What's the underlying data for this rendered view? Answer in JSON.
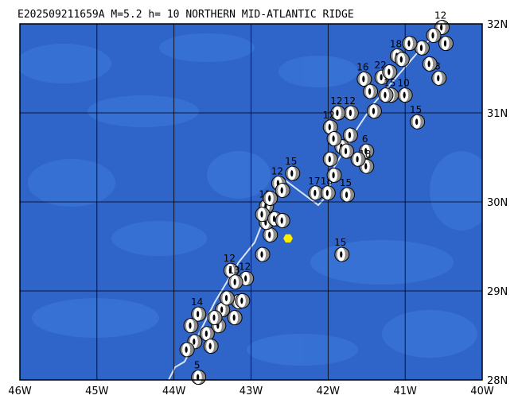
{
  "map": {
    "title": "E202509211659A M=5.2 h= 10 NORTHERN MID-ATLANTIC RIDGE",
    "xlim": [
      -46,
      -40
    ],
    "ylim": [
      28,
      32
    ],
    "xticks": [
      {
        "value": -46,
        "label": "46W"
      },
      {
        "value": -45,
        "label": "45W"
      },
      {
        "value": -44,
        "label": "44W"
      },
      {
        "value": -43,
        "label": "43W"
      },
      {
        "value": -42,
        "label": "42W"
      },
      {
        "value": -41,
        "label": "41W"
      },
      {
        "value": -40,
        "label": "40W"
      }
    ],
    "yticks": [
      {
        "value": 28,
        "label": "28N"
      },
      {
        "value": 29,
        "label": "29N"
      },
      {
        "value": 30,
        "label": "30N"
      },
      {
        "value": 31,
        "label": "31N"
      },
      {
        "value": 32,
        "label": "32N"
      }
    ],
    "epicenter": {
      "lon": -42.52,
      "lat": 29.59,
      "color": "#ffee00"
    },
    "events": [
      {
        "lon": -43.68,
        "lat": 28.03,
        "label": "5"
      },
      {
        "lon": -41.82,
        "lat": 29.41,
        "label": "15"
      },
      {
        "lon": -40.84,
        "lat": 30.9,
        "label": "15"
      },
      {
        "lon": -41.75,
        "lat": 30.08,
        "label": "15"
      },
      {
        "lon": -42.16,
        "lat": 30.1,
        "label": "17"
      },
      {
        "lon": -42.0,
        "lat": 30.1,
        "label": "18"
      },
      {
        "lon": -42.46,
        "lat": 30.32,
        "label": "15"
      },
      {
        "lon": -42.64,
        "lat": 30.21,
        "label": "12"
      },
      {
        "lon": -42.8,
        "lat": 29.95,
        "label": "13"
      },
      {
        "lon": -43.26,
        "lat": 29.23,
        "label": "12"
      },
      {
        "lon": -43.06,
        "lat": 29.14,
        "label": "12"
      },
      {
        "lon": -43.2,
        "lat": 29.1,
        "label": "13"
      },
      {
        "lon": -43.68,
        "lat": 28.74,
        "label": "14"
      },
      {
        "lon": -41.3,
        "lat": 31.4,
        "label": "22"
      },
      {
        "lon": -41.53,
        "lat": 31.38,
        "label": "16"
      },
      {
        "lon": -41.0,
        "lat": 31.2,
        "label": "10"
      },
      {
        "lon": -41.18,
        "lat": 31.2,
        "label": "15"
      },
      {
        "lon": -40.56,
        "lat": 31.39,
        "label": "8"
      },
      {
        "lon": -41.1,
        "lat": 31.64,
        "label": "18"
      },
      {
        "lon": -40.52,
        "lat": 31.96,
        "label": "12"
      },
      {
        "lon": -41.7,
        "lat": 31.0,
        "label": "12"
      },
      {
        "lon": -41.87,
        "lat": 31.0,
        "label": "12"
      },
      {
        "lon": -41.97,
        "lat": 30.84,
        "label": "12"
      },
      {
        "lon": -41.5,
        "lat": 30.57,
        "label": "6"
      },
      {
        "lon": -41.5,
        "lat": 30.4,
        "label": "18"
      },
      {
        "lon": -42.85,
        "lat": 29.41
      },
      {
        "lon": -42.75,
        "lat": 29.63
      },
      {
        "lon": -42.8,
        "lat": 29.77
      },
      {
        "lon": -42.85,
        "lat": 29.86
      },
      {
        "lon": -42.69,
        "lat": 29.81
      },
      {
        "lon": -42.59,
        "lat": 29.79
      },
      {
        "lon": -42.75,
        "lat": 30.04
      },
      {
        "lon": -42.59,
        "lat": 30.13
      },
      {
        "lon": -43.16,
        "lat": 28.88
      },
      {
        "lon": -43.37,
        "lat": 28.79
      },
      {
        "lon": -43.42,
        "lat": 28.61
      },
      {
        "lon": -43.57,
        "lat": 28.52
      },
      {
        "lon": -43.73,
        "lat": 28.43
      },
      {
        "lon": -43.52,
        "lat": 28.38
      },
      {
        "lon": -43.83,
        "lat": 28.34
      },
      {
        "lon": -43.21,
        "lat": 28.7
      },
      {
        "lon": -43.31,
        "lat": 28.92
      },
      {
        "lon": -43.11,
        "lat": 28.89
      },
      {
        "lon": -43.47,
        "lat": 28.7
      },
      {
        "lon": -43.78,
        "lat": 28.61
      },
      {
        "lon": -41.97,
        "lat": 30.48
      },
      {
        "lon": -41.82,
        "lat": 30.62
      },
      {
        "lon": -41.92,
        "lat": 30.3
      },
      {
        "lon": -41.71,
        "lat": 30.75
      },
      {
        "lon": -41.61,
        "lat": 30.48
      },
      {
        "lon": -41.4,
        "lat": 31.02
      },
      {
        "lon": -41.25,
        "lat": 31.2
      },
      {
        "lon": -41.45,
        "lat": 31.24
      },
      {
        "lon": -41.92,
        "lat": 30.71
      },
      {
        "lon": -40.68,
        "lat": 31.55
      },
      {
        "lon": -40.78,
        "lat": 31.73
      },
      {
        "lon": -40.94,
        "lat": 31.78
      },
      {
        "lon": -40.63,
        "lat": 31.87
      },
      {
        "lon": -40.47,
        "lat": 31.78
      },
      {
        "lon": -41.04,
        "lat": 31.6
      },
      {
        "lon": -41.2,
        "lat": 31.46
      },
      {
        "lon": -41.76,
        "lat": 30.57
      }
    ]
  }
}
